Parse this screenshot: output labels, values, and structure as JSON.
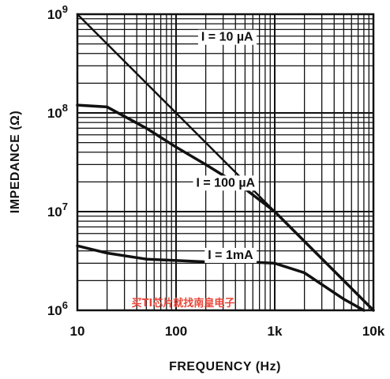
{
  "chart_data": {
    "type": "line",
    "title": "",
    "xlabel": "FREQUENCY (Hz)",
    "ylabel": "IMPEDANCE (Ω)",
    "x_scale": "log",
    "y_scale": "log",
    "xlim": [
      10,
      10000
    ],
    "ylim": [
      1000000,
      1000000000
    ],
    "grid": true,
    "x_ticks": [
      {
        "value": 10,
        "label": "10"
      },
      {
        "value": 100,
        "label": "100"
      },
      {
        "value": 1000,
        "label": "1k"
      },
      {
        "value": 10000,
        "label": "10k"
      }
    ],
    "y_ticks": [
      {
        "value": 1000000,
        "base": "10",
        "exp": "6"
      },
      {
        "value": 10000000,
        "base": "10",
        "exp": "7"
      },
      {
        "value": 100000000,
        "base": "10",
        "exp": "8"
      },
      {
        "value": 1000000000,
        "base": "10",
        "exp": "9"
      }
    ],
    "series": [
      {
        "name": "I = 10 µA",
        "x": [
          10,
          100,
          1000,
          10000
        ],
        "y": [
          1000000000,
          100000000,
          10000000,
          1000000
        ]
      },
      {
        "name": "I = 100 µA",
        "x": [
          10,
          20,
          50,
          100,
          200,
          500,
          1000,
          2000,
          5000,
          10000
        ],
        "y": [
          120000000,
          115000000,
          70000000,
          45000000,
          30000000,
          17000000,
          10000000,
          5000000,
          2000000,
          1000000
        ]
      },
      {
        "name": "I = 1mA",
        "x": [
          10,
          20,
          50,
          100,
          200,
          500,
          1000,
          2000,
          5000,
          8000
        ],
        "y": [
          4500000,
          3800000,
          3300000,
          3200000,
          3100000,
          3100000,
          3000000,
          2400000,
          1300000,
          1000000
        ]
      }
    ],
    "curve_labels": [
      {
        "text": "I = 10 µA",
        "x": 180,
        "y": 600000000
      },
      {
        "text": "I = 100 µA",
        "x": 160,
        "y": 20000000
      },
      {
        "text": "I = 1mA",
        "x": 210,
        "y": 3700000
      }
    ]
  },
  "watermark": "买TI芯片就找南皇电子"
}
